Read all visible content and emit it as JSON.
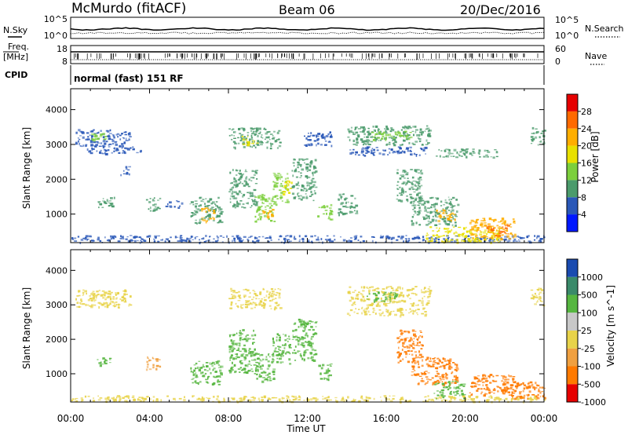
{
  "header": {
    "station": "McMurdo (fitACF)",
    "beam": "Beam 06",
    "date": "20/Dec/2016"
  },
  "noise_panel": {
    "left_label": "N.Sky",
    "right_label": "N.Search",
    "left_ticks": [
      "10^5",
      "10^0"
    ],
    "right_ticks": [
      "10^5",
      "10^0"
    ]
  },
  "freq_panel": {
    "left_label_1": "Freq.",
    "left_label_2": "[MHz]",
    "right_label": "Nave",
    "left_ticks": [
      "18",
      "8"
    ],
    "right_ticks": [
      "60",
      "0"
    ]
  },
  "cpid_panel": {
    "label": "CPID",
    "mode_text": "normal (fast) 151 RF"
  },
  "axes": {
    "ylabel": "Slant Range [km]",
    "xlabel": "Time UT",
    "yticks": [
      1000,
      2000,
      3000,
      4000
    ],
    "xticks": [
      "00:00",
      "04:00",
      "08:00",
      "12:00",
      "16:00",
      "20:00",
      "00:00"
    ],
    "ylim": [
      180,
      4600
    ],
    "xlim_hours": [
      0,
      24
    ]
  },
  "power_colorbar": {
    "label": "Power [dB]",
    "ticks": [
      "28",
      "24",
      "20",
      "16",
      "12",
      "8",
      "4"
    ],
    "colors": [
      "#e60000",
      "#ff6a00",
      "#ffae00",
      "#e8e000",
      "#7ccf3c",
      "#4b9b6c",
      "#2a58b8",
      "#0018ff"
    ]
  },
  "velocity_colorbar": {
    "label": "Velocity [m s^-1]",
    "ticks": [
      "1000",
      "500",
      "100",
      "25",
      "-25",
      "-100",
      "-500",
      "-1000"
    ],
    "colors": [
      "#1a4bb0",
      "#3a8a6a",
      "#56b640",
      "#c8c8c8",
      "#e8d34a",
      "#f0a040",
      "#ff7a00",
      "#e60000"
    ]
  },
  "chart_data": [
    {
      "type": "heatmap",
      "panel": "power",
      "xlabel": "Time UT",
      "ylabel": "Slant Range [km]",
      "colorbar_label": "Power [dB]",
      "x_units": "hours UT",
      "y_units": "km",
      "patches": [
        {
          "t0": 0.0,
          "t1": 24.0,
          "r0": 200,
          "r1": 400,
          "dB": 6
        },
        {
          "t0": 0.2,
          "t1": 3.0,
          "r0": 2950,
          "r1": 3450,
          "dB": 7
        },
        {
          "t0": 1.0,
          "t1": 2.0,
          "r0": 3100,
          "r1": 3350,
          "dB": 13
        },
        {
          "t0": 0.8,
          "t1": 3.6,
          "r0": 2750,
          "r1": 2950,
          "dB": 6
        },
        {
          "t0": 1.3,
          "t1": 2.2,
          "r0": 1200,
          "r1": 1500,
          "dB": 9
        },
        {
          "t0": 2.5,
          "t1": 3.0,
          "r0": 2100,
          "r1": 2400,
          "dB": 6
        },
        {
          "t0": 3.8,
          "t1": 4.5,
          "r0": 1100,
          "r1": 1500,
          "dB": 9
        },
        {
          "t0": 4.8,
          "t1": 5.6,
          "r0": 1200,
          "r1": 1400,
          "dB": 7
        },
        {
          "t0": 6.0,
          "t1": 7.6,
          "r0": 750,
          "r1": 1500,
          "dB": 11
        },
        {
          "t0": 6.6,
          "t1": 7.3,
          "r0": 800,
          "r1": 1200,
          "dB": 20
        },
        {
          "t0": 8.0,
          "t1": 10.6,
          "r0": 2900,
          "r1": 3500,
          "dB": 9
        },
        {
          "t0": 8.6,
          "t1": 9.4,
          "r0": 3000,
          "r1": 3250,
          "dB": 18
        },
        {
          "t0": 8.0,
          "t1": 9.4,
          "r0": 1200,
          "r1": 2300,
          "dB": 11
        },
        {
          "t0": 9.3,
          "t1": 10.3,
          "r0": 800,
          "r1": 1600,
          "dB": 12
        },
        {
          "t0": 9.7,
          "t1": 10.2,
          "r0": 850,
          "r1": 1150,
          "dB": 22
        },
        {
          "t0": 10.2,
          "t1": 11.0,
          "r0": 1300,
          "r1": 2200,
          "dB": 12
        },
        {
          "t0": 10.7,
          "t1": 11.2,
          "r0": 1600,
          "r1": 2000,
          "dB": 18
        },
        {
          "t0": 11.2,
          "t1": 12.4,
          "r0": 1400,
          "r1": 2600,
          "dB": 10
        },
        {
          "t0": 12.5,
          "t1": 13.2,
          "r0": 850,
          "r1": 1300,
          "dB": 12
        },
        {
          "t0": 13.5,
          "t1": 14.5,
          "r0": 1000,
          "r1": 1600,
          "dB": 9
        },
        {
          "t0": 11.8,
          "t1": 13.2,
          "r0": 2950,
          "r1": 3400,
          "dB": 7
        },
        {
          "t0": 14.0,
          "t1": 18.2,
          "r0": 3000,
          "r1": 3550,
          "dB": 9
        },
        {
          "t0": 15.2,
          "t1": 17.2,
          "r0": 3150,
          "r1": 3400,
          "dB": 14
        },
        {
          "t0": 14.0,
          "t1": 18.0,
          "r0": 2700,
          "r1": 2950,
          "dB": 6
        },
        {
          "t0": 18.5,
          "t1": 21.6,
          "r0": 2650,
          "r1": 2900,
          "dB": 8
        },
        {
          "t0": 16.5,
          "t1": 17.8,
          "r0": 1350,
          "r1": 2300,
          "dB": 10
        },
        {
          "t0": 17.2,
          "t1": 19.6,
          "r0": 700,
          "r1": 1500,
          "dB": 11
        },
        {
          "t0": 18.5,
          "t1": 19.5,
          "r0": 800,
          "r1": 1150,
          "dB": 20
        },
        {
          "t0": 18.0,
          "t1": 21.8,
          "r0": 200,
          "r1": 650,
          "dB": 16
        },
        {
          "t0": 20.2,
          "t1": 22.5,
          "r0": 300,
          "r1": 900,
          "dB": 20
        },
        {
          "t0": 21.0,
          "t1": 22.2,
          "r0": 400,
          "r1": 700,
          "dB": 27
        },
        {
          "t0": 23.3,
          "t1": 24.0,
          "r0": 3000,
          "r1": 3500,
          "dB": 9
        }
      ]
    },
    {
      "type": "heatmap",
      "panel": "velocity",
      "xlabel": "Time UT",
      "ylabel": "Slant Range [km]",
      "colorbar_label": "Velocity [m s^-1]",
      "x_units": "hours UT",
      "y_units": "km",
      "patches": [
        {
          "t0": 0.0,
          "t1": 24.0,
          "r0": 200,
          "r1": 380,
          "v": 0
        },
        {
          "t0": 0.2,
          "t1": 3.0,
          "r0": 2950,
          "r1": 3450,
          "v": 0
        },
        {
          "t0": 1.0,
          "t1": 2.0,
          "r0": 3150,
          "r1": 3350,
          "v": 20
        },
        {
          "t0": 1.3,
          "t1": 2.0,
          "r0": 1250,
          "r1": 1500,
          "v": 150
        },
        {
          "t0": 3.8,
          "t1": 4.5,
          "r0": 1100,
          "r1": 1500,
          "v": -80
        },
        {
          "t0": 6.0,
          "t1": 7.6,
          "r0": 700,
          "r1": 1400,
          "v": 400
        },
        {
          "t0": 8.0,
          "t1": 10.6,
          "r0": 2900,
          "r1": 3500,
          "v": 0
        },
        {
          "t0": 8.0,
          "t1": 9.4,
          "r0": 1000,
          "r1": 2300,
          "v": 400
        },
        {
          "t0": 9.3,
          "t1": 10.3,
          "r0": 800,
          "r1": 1600,
          "v": 450
        },
        {
          "t0": 10.2,
          "t1": 11.1,
          "r0": 1300,
          "r1": 2200,
          "v": 400
        },
        {
          "t0": 11.2,
          "t1": 12.4,
          "r0": 1400,
          "r1": 2600,
          "v": 400
        },
        {
          "t0": 12.5,
          "t1": 13.2,
          "r0": 850,
          "r1": 1300,
          "v": 400
        },
        {
          "t0": 14.0,
          "t1": 18.2,
          "r0": 3000,
          "r1": 3550,
          "v": 0
        },
        {
          "t0": 15.0,
          "t1": 16.5,
          "r0": 3100,
          "r1": 3400,
          "v": 150
        },
        {
          "t0": 14.0,
          "t1": 18.0,
          "r0": 2700,
          "r1": 2950,
          "v": 0
        },
        {
          "t0": 16.5,
          "t1": 17.8,
          "r0": 1350,
          "r1": 2300,
          "v": -350
        },
        {
          "t0": 17.2,
          "t1": 19.6,
          "r0": 700,
          "r1": 1500,
          "v": -400
        },
        {
          "t0": 18.4,
          "t1": 20.0,
          "r0": 300,
          "r1": 800,
          "v": 450
        },
        {
          "t0": 20.2,
          "t1": 22.5,
          "r0": 400,
          "r1": 1000,
          "v": -450
        },
        {
          "t0": 21.8,
          "t1": 24.0,
          "r0": 300,
          "r1": 800,
          "v": -400
        },
        {
          "t0": 23.3,
          "t1": 24.0,
          "r0": 3000,
          "r1": 3500,
          "v": 0
        }
      ]
    }
  ]
}
